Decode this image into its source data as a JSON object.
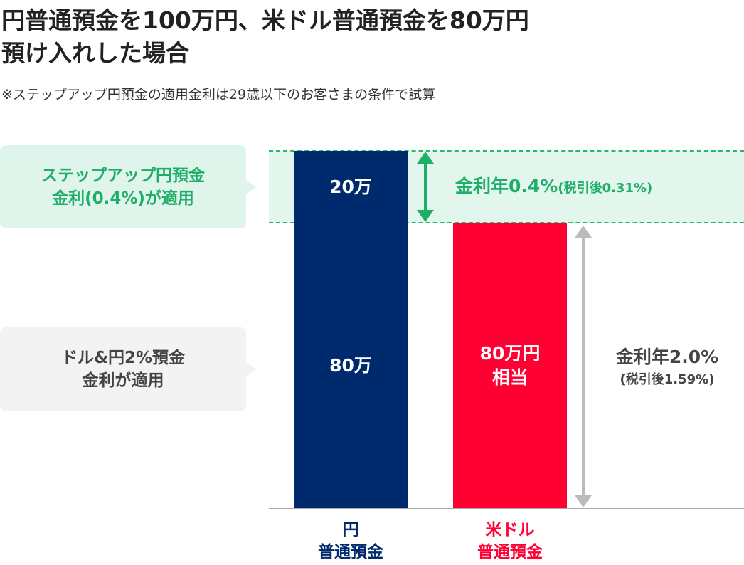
{
  "title": {
    "line1": "円普通預金を100万円、米ドル普通預金を80万円",
    "line2": "預け入れした場合"
  },
  "note": "※ステップアップ円預金の適用金利は29歳以下のお客さまの条件で試算",
  "callouts": {
    "stepup": {
      "line1": "ステップアップ円預金",
      "line2": "金利(0.4%)が適用"
    },
    "dollar_yen": {
      "line1": "ドル&円2%預金",
      "line2": "金利が適用"
    }
  },
  "bars": {
    "yen_top_label": "20万",
    "yen_bottom_label": "80万",
    "usd_label_line1": "80万円",
    "usd_label_line2": "相当"
  },
  "rates": {
    "stepup_main": "金利年0.4%",
    "stepup_after_tax": "(税引後0.31%)",
    "dollar_yen_main": "金利年2.0%",
    "dollar_yen_after_tax": "(税引後1.59%)"
  },
  "axis": {
    "yen_line1": "円",
    "yen_line2": "普通預金",
    "usd_line1": "米ドル",
    "usd_line2": "普通預金"
  },
  "colors": {
    "navy": "#002a6e",
    "red": "#ff0033",
    "green": "#1fae68",
    "green_bg": "#dff4ea",
    "gray_arrow": "#bbbbbb"
  }
}
